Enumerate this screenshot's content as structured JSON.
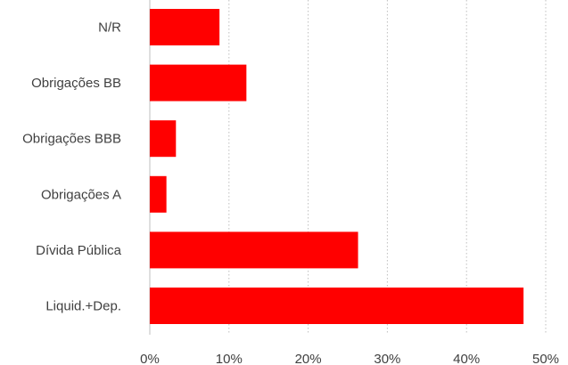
{
  "chart_data": {
    "type": "bar",
    "orientation": "horizontal",
    "categories": [
      "N/R",
      "Obrigações BB",
      "Obrigações BBB",
      "Obrigações A",
      "Dívida Pública",
      "Liquid.+Dep."
    ],
    "values": [
      8.8,
      12.2,
      3.3,
      2.1,
      26.3,
      47.2
    ],
    "xlim": [
      0,
      50
    ],
    "xticks": [
      "0%",
      "10%",
      "20%",
      "30%",
      "40%",
      "50%"
    ],
    "grid": true,
    "title": "",
    "xlabel": "",
    "ylabel": "",
    "colors": {
      "bar": "#ff0000",
      "grid": "#bfbfbf",
      "text": "#404040"
    }
  }
}
